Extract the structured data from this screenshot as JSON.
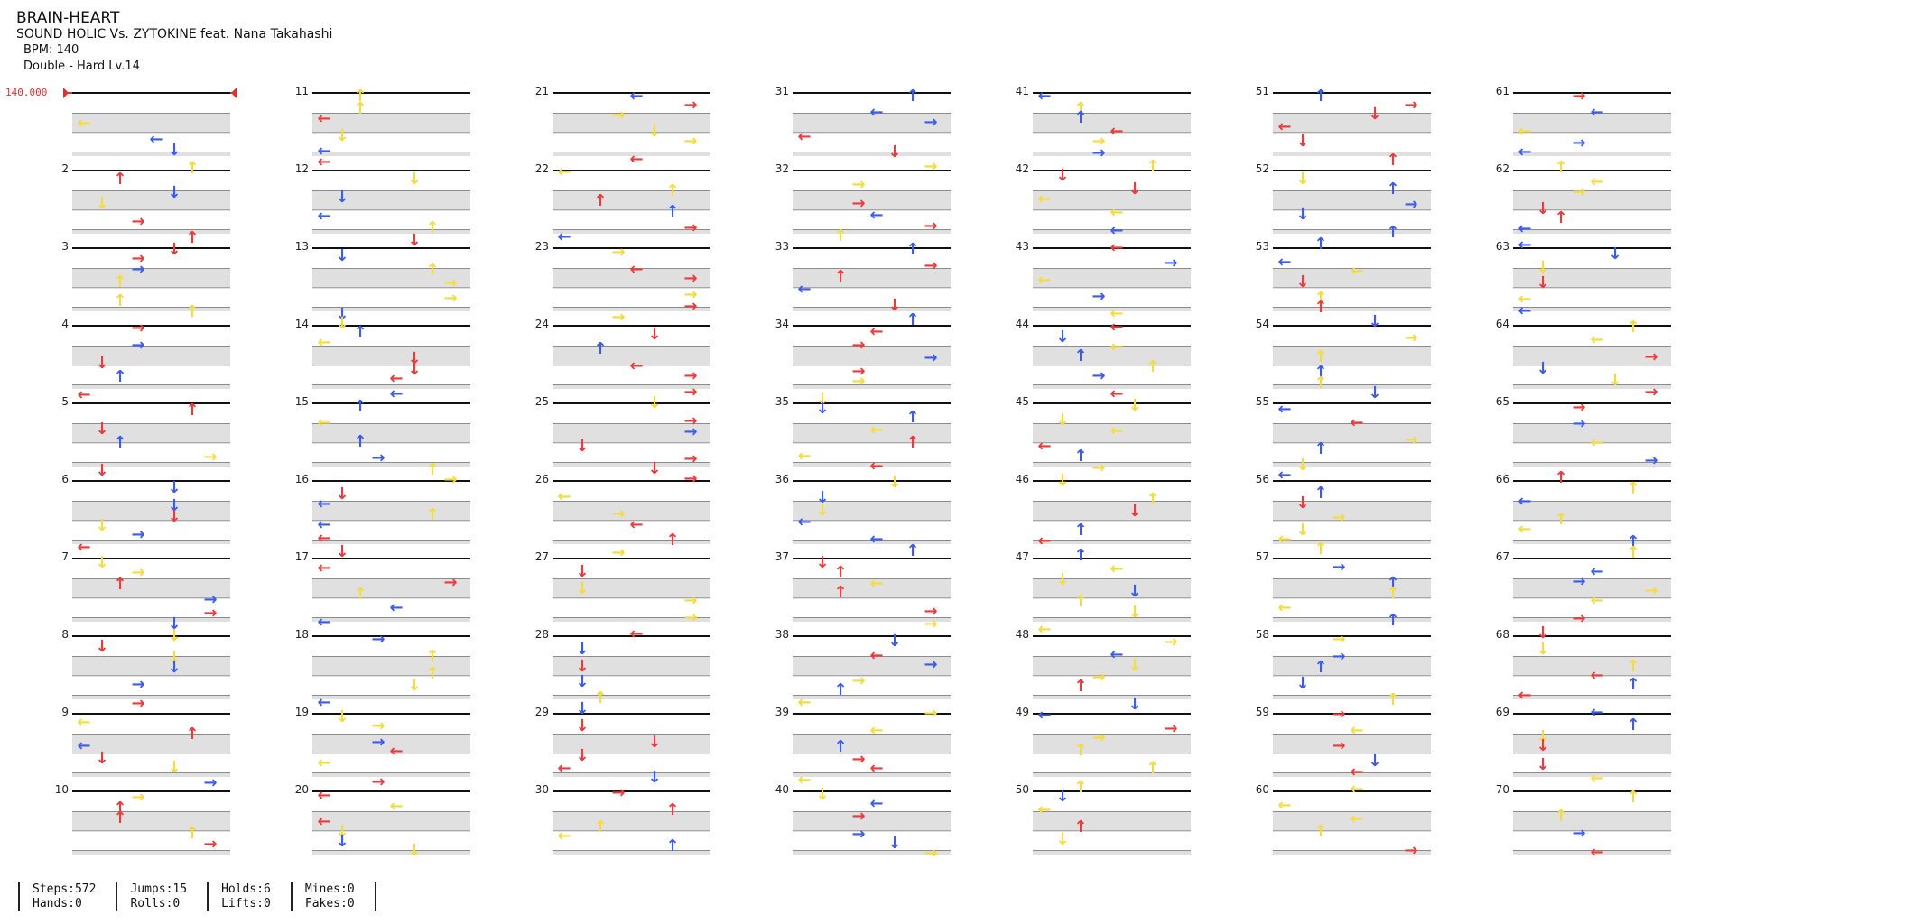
{
  "song": {
    "title": "BRAIN-HEART",
    "artist": "SOUND HOLIC Vs. ZYTOKINE feat. Nana Takahashi",
    "bpm_text": "BPM: 140",
    "difficulty_text": "Double - Hard  Lv.14"
  },
  "bpm_marker": "140.000",
  "colors": {
    "red": "#ee3a3a",
    "blue": "#3a5cf0",
    "yellow": "#f5dc3a",
    "green": "#79d67a"
  },
  "icons": {
    "left": "←",
    "down": "↓",
    "up": "↑",
    "right": "→"
  },
  "columns": [
    {
      "measures": [
        "",
        "2",
        "3",
        "4",
        "5",
        "6",
        "7",
        "8",
        "9",
        "10"
      ]
    },
    {
      "measures": [
        "11",
        "12",
        "13",
        "14",
        "15",
        "16",
        "17",
        "18",
        "19",
        "20"
      ]
    },
    {
      "measures": [
        "21",
        "22",
        "23",
        "24",
        "25",
        "26",
        "27",
        "28",
        "29",
        "30"
      ]
    },
    {
      "measures": [
        "31",
        "32",
        "33",
        "34",
        "35",
        "36",
        "37",
        "38",
        "39",
        "40"
      ]
    },
    {
      "measures": [
        "41",
        "42",
        "43",
        "44",
        "45",
        "46",
        "47",
        "48",
        "49",
        "50"
      ]
    },
    {
      "measures": [
        "51",
        "52",
        "53",
        "54",
        "55",
        "56",
        "57",
        "58",
        "59",
        "60"
      ]
    },
    {
      "measures": [
        "61",
        "62",
        "63",
        "64",
        "65",
        "66",
        "67",
        "68",
        "69",
        "70"
      ]
    }
  ],
  "stats": {
    "steps": "Steps:572",
    "hands": "Hands:0",
    "jumps": "Jumps:15",
    "rolls": "Rolls:0",
    "holds": "Holds:6",
    "lifts": "Lifts:0",
    "mines": "Mines:0",
    "fakes": "Fakes:0"
  }
}
